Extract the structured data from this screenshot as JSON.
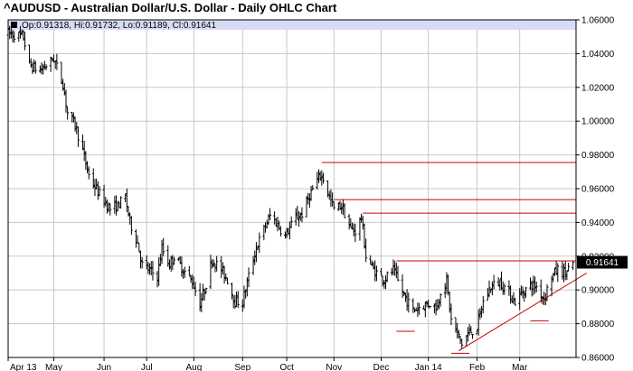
{
  "chart_data": {
    "type": "ohlc",
    "title": "^AUDUSD - Australian Dollar/U.S. Dollar - Daily OHLC Chart",
    "ohlc_readout": {
      "open_label": "Op:",
      "open": "0.91318",
      "high_label": "Hi:",
      "high": "0.91732",
      "low_label": "Lo:",
      "low": "0.91189",
      "close_label": "Cl:",
      "close": "0.91641"
    },
    "last_price_label": "0.91641",
    "ylim": [
      0.86,
      1.06
    ],
    "y_tick_labels": [
      "1.06000",
      "1.04000",
      "1.02000",
      "1.00000",
      "0.98000",
      "0.96000",
      "0.94000",
      "0.92000",
      "0.90000",
      "0.88000",
      "0.86000"
    ],
    "y_tick_values": [
      1.06,
      1.04,
      1.02,
      1.0,
      0.98,
      0.96,
      0.94,
      0.92,
      0.9,
      0.88,
      0.86
    ],
    "x_tick_labels": [
      "Apr 13",
      "May",
      "Jun",
      "Jul",
      "Aug",
      "Sep",
      "Oct",
      "Nov",
      "Dec",
      "Jan 14",
      "Feb",
      "Mar"
    ],
    "x_tick_dates": [
      "2013-04-01",
      "2013-05-01",
      "2013-06-03",
      "2013-07-01",
      "2013-08-01",
      "2013-09-02",
      "2013-10-01",
      "2013-11-01",
      "2013-12-02",
      "2014-01-02",
      "2014-02-03",
      "2014-03-03"
    ],
    "x_range": [
      "2013-04-01",
      "2014-04-09"
    ],
    "grid": true,
    "colors": {
      "bars": "#000000",
      "annotation_lines": "#cc0000",
      "readout_band": "#d6dcf5",
      "last_price_box": "#000000",
      "grid": "#c8c8c8"
    },
    "anchors": [
      [
        "2013-04-01",
        1.052
      ],
      [
        "2013-04-11",
        1.05
      ],
      [
        "2013-04-15",
        1.033
      ],
      [
        "2013-04-22",
        1.03
      ],
      [
        "2013-05-01",
        1.037
      ],
      [
        "2013-05-07",
        1.022
      ],
      [
        "2013-05-10",
        1.005
      ],
      [
        "2013-05-15",
        0.998
      ],
      [
        "2013-05-20",
        0.982
      ],
      [
        "2013-05-24",
        0.968
      ],
      [
        "2013-05-30",
        0.958
      ],
      [
        "2013-06-07",
        0.948
      ],
      [
        "2013-06-12",
        0.95
      ],
      [
        "2013-06-17",
        0.955
      ],
      [
        "2013-06-20",
        0.94
      ],
      [
        "2013-06-25",
        0.928
      ],
      [
        "2013-06-28",
        0.915
      ],
      [
        "2013-07-08",
        0.908
      ],
      [
        "2013-07-11",
        0.925
      ],
      [
        "2013-07-16",
        0.915
      ],
      [
        "2013-07-19",
        0.92
      ],
      [
        "2013-07-25",
        0.912
      ],
      [
        "2013-07-31",
        0.905
      ],
      [
        "2013-08-05",
        0.892
      ],
      [
        "2013-08-08",
        0.9
      ],
      [
        "2013-08-13",
        0.918
      ],
      [
        "2013-08-19",
        0.912
      ],
      [
        "2013-08-23",
        0.906
      ],
      [
        "2013-08-28",
        0.893
      ],
      [
        "2013-09-02",
        0.893
      ],
      [
        "2013-09-06",
        0.908
      ],
      [
        "2013-09-11",
        0.925
      ],
      [
        "2013-09-17",
        0.938
      ],
      [
        "2013-09-20",
        0.944
      ],
      [
        "2013-09-24",
        0.94
      ],
      [
        "2013-09-30",
        0.932
      ],
      [
        "2013-10-07",
        0.943
      ],
      [
        "2013-10-11",
        0.945
      ],
      [
        "2013-10-17",
        0.958
      ],
      [
        "2013-10-23",
        0.968
      ],
      [
        "2013-10-25",
        0.966
      ],
      [
        "2013-10-29",
        0.955
      ],
      [
        "2013-11-01",
        0.948
      ],
      [
        "2013-11-06",
        0.95
      ],
      [
        "2013-11-12",
        0.936
      ],
      [
        "2013-11-15",
        0.935
      ],
      [
        "2013-11-19",
        0.943
      ],
      [
        "2013-11-22",
        0.92
      ],
      [
        "2013-11-27",
        0.912
      ],
      [
        "2013-12-04",
        0.906
      ],
      [
        "2013-12-10",
        0.912
      ],
      [
        "2013-12-13",
        0.905
      ],
      [
        "2013-12-18",
        0.895
      ],
      [
        "2013-12-23",
        0.888
      ],
      [
        "2013-12-27",
        0.89
      ],
      [
        "2014-01-03",
        0.892
      ],
      [
        "2014-01-08",
        0.89
      ],
      [
        "2014-01-10",
        0.9
      ],
      [
        "2014-01-14",
        0.905
      ],
      [
        "2014-01-17",
        0.882
      ],
      [
        "2014-01-22",
        0.872
      ],
      [
        "2014-01-24",
        0.868
      ],
      [
        "2014-01-28",
        0.874
      ],
      [
        "2014-02-03",
        0.878
      ],
      [
        "2014-02-07",
        0.893
      ],
      [
        "2014-02-12",
        0.902
      ],
      [
        "2014-02-18",
        0.905
      ],
      [
        "2014-02-24",
        0.898
      ],
      [
        "2014-02-28",
        0.893
      ],
      [
        "2014-03-04",
        0.898
      ],
      [
        "2014-03-10",
        0.903
      ],
      [
        "2014-03-14",
        0.902
      ],
      [
        "2014-03-19",
        0.895
      ],
      [
        "2014-03-24",
        0.908
      ],
      [
        "2014-03-28",
        0.912
      ],
      [
        "2014-04-02",
        0.91
      ],
      [
        "2014-04-07",
        0.9164
      ]
    ],
    "annotation_lines": [
      {
        "from": [
          "2013-10-24",
          0.9755
        ],
        "to": [
          "2014-04-09",
          0.9755
        ]
      },
      {
        "from": [
          "2013-11-01",
          0.9535
        ],
        "to": [
          "2014-04-09",
          0.9535
        ]
      },
      {
        "from": [
          "2013-11-20",
          0.9455
        ],
        "to": [
          "2014-04-09",
          0.9455
        ]
      },
      {
        "from": [
          "2013-12-12",
          0.9172
        ],
        "to": [
          "2014-04-09",
          0.9172
        ]
      },
      {
        "from": [
          "2013-12-12",
          0.8755
        ],
        "to": [
          "2013-12-24",
          0.8755
        ]
      },
      {
        "from": [
          "2014-01-17",
          0.8625
        ],
        "to": [
          "2014-01-29",
          0.8625
        ]
      },
      {
        "from": [
          "2014-03-10",
          0.8817
        ],
        "to": [
          "2014-03-22",
          0.8817
        ]
      },
      {
        "from": [
          "2014-01-22",
          0.864
        ],
        "to": [
          "2014-04-16",
          0.91
        ]
      }
    ]
  }
}
